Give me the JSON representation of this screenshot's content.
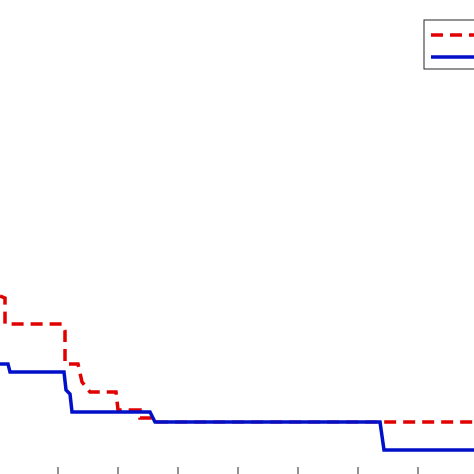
{
  "chart_data": {
    "type": "line",
    "title": "",
    "xlabel": "",
    "ylabel": "",
    "grid": false,
    "legend_placement": "top-right",
    "xlim": [
      0,
      474
    ],
    "ylim": [
      0,
      474
    ],
    "x_ticks": [
      58,
      118,
      178,
      238,
      298,
      358,
      418
    ],
    "series": [
      {
        "style": "dashed",
        "color": "#e00000",
        "points": [
          [
            0,
            178
          ],
          [
            5,
            176
          ],
          [
            5,
            150
          ],
          [
            62,
            150
          ],
          [
            65,
            143
          ],
          [
            65,
            110
          ],
          [
            78,
            110
          ],
          [
            82,
            92
          ],
          [
            90,
            82
          ],
          [
            116,
            82
          ],
          [
            118,
            64
          ],
          [
            140,
            64
          ],
          [
            140,
            56
          ],
          [
            154,
            56
          ],
          [
            156,
            52
          ],
          [
            474,
            52
          ]
        ]
      },
      {
        "style": "solid",
        "color": "#0010c8",
        "points": [
          [
            0,
            110
          ],
          [
            8,
            110
          ],
          [
            10,
            102
          ],
          [
            64,
            102
          ],
          [
            66,
            84
          ],
          [
            70,
            80
          ],
          [
            72,
            62
          ],
          [
            150,
            62
          ],
          [
            155,
            52
          ],
          [
            380,
            52
          ],
          [
            384,
            24
          ],
          [
            474,
            24
          ]
        ]
      }
    ]
  }
}
